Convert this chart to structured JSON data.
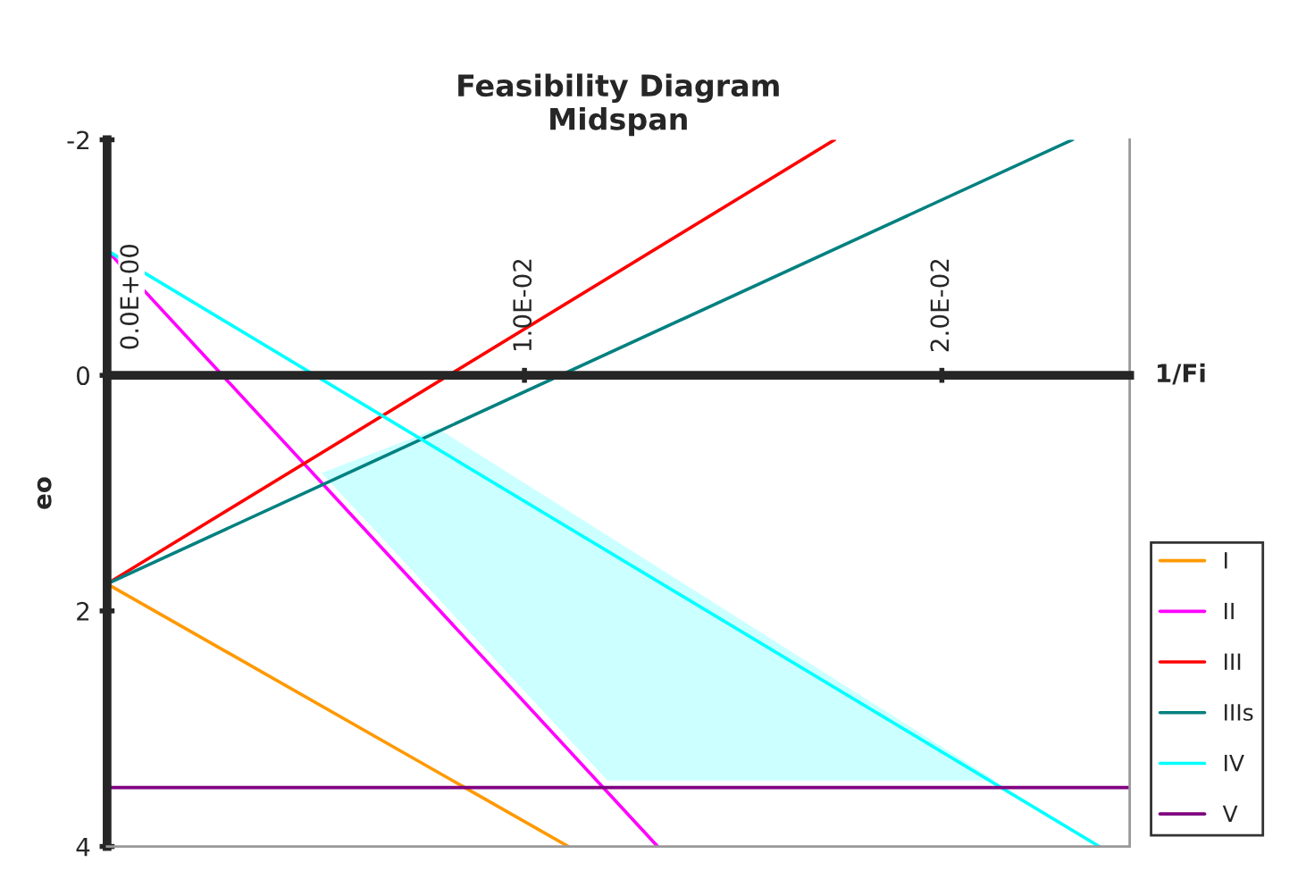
{
  "chart_data": {
    "type": "line",
    "title": "Feasibility Diagram\nMidspan",
    "xlabel": "1/Fi",
    "ylabel": "eo",
    "xlim": [
      0,
      0.0245
    ],
    "xticks": [
      {
        "value": 0,
        "label": "0.0E+00"
      },
      {
        "value": 0.01,
        "label": "1.0E-02"
      },
      {
        "value": 0.02,
        "label": "2.0E-02"
      }
    ],
    "ylim": [
      4,
      -2
    ],
    "yticks": [
      -2,
      0,
      2,
      4
    ],
    "grid": false,
    "legend": "right",
    "series": [
      {
        "type": "area",
        "color": "#ccffff",
        "x": [
          0.00514,
          0.00792,
          0.02128,
          0.01199
        ],
        "values": [
          0.83,
          0.45,
          3.44,
          3.44
        ]
      },
      {
        "name": "I",
        "color": "#ff9900",
        "x": [
          0,
          0.01105
        ],
        "values": [
          1.77,
          4
        ]
      },
      {
        "name": "II",
        "color": "#ff00ff",
        "x": [
          0,
          0.01319
        ],
        "values": [
          -1.06,
          4
        ]
      },
      {
        "name": "III",
        "color": "#ff0000",
        "x": [
          0,
          0.01743
        ],
        "values": [
          1.77,
          -2
        ]
      },
      {
        "name": "IIIs",
        "color": "#008080",
        "x": [
          0,
          0.02313
        ],
        "values": [
          1.77,
          -2
        ]
      },
      {
        "name": "IV",
        "color": "#00ffff",
        "x": [
          0,
          0.02377
        ],
        "values": [
          -1.06,
          4
        ]
      },
      {
        "name": "V",
        "color": "#800080",
        "x": [
          0,
          0.0245
        ],
        "values": [
          3.5,
          3.5
        ]
      }
    ]
  }
}
